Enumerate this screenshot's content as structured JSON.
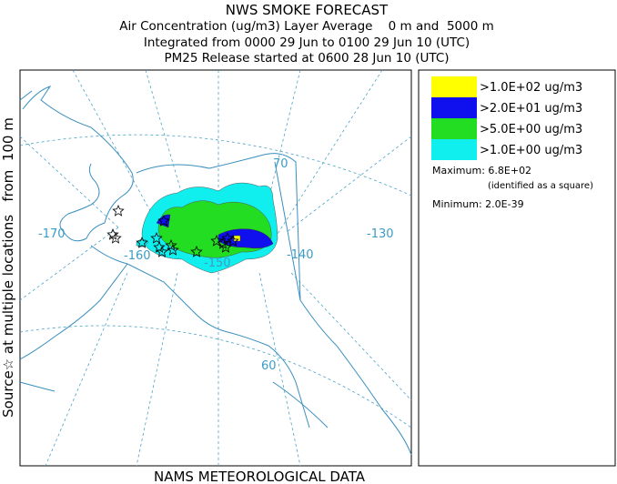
{
  "header": {
    "title": "NWS SMOKE FORECAST",
    "lines": [
      "Air Concentration (ug/m3) Layer Average    0 m and  5000 m",
      "Integrated from 0000 29 Jun to 0100 29 Jun 10 (UTC)",
      "PM25 Release started at 0600 28 Jun 10 (UTC)"
    ]
  },
  "side_label": "Source☆ at multiple locations   from  100 m",
  "footer": "NAMS METEOROLOGICAL DATA",
  "legend": {
    "items": [
      {
        "label": ">1.0E+02 ug/m3",
        "color": "#ffff00"
      },
      {
        "label": ">2.0E+01 ug/m3",
        "color": "#1010ee"
      },
      {
        "label": ">5.0E+00 ug/m3",
        "color": "#22dd22"
      },
      {
        "label": ">1.0E+00 ug/m3",
        "color": "#11eeee"
      }
    ],
    "maximum": "Maximum: 6.8E+02",
    "max_note": "(identified as a square)",
    "minimum": "Minimum: 2.0E-39"
  },
  "map_labels": [
    "70",
    "-170",
    "-160",
    "-150",
    "-140",
    "-130",
    "60"
  ]
}
